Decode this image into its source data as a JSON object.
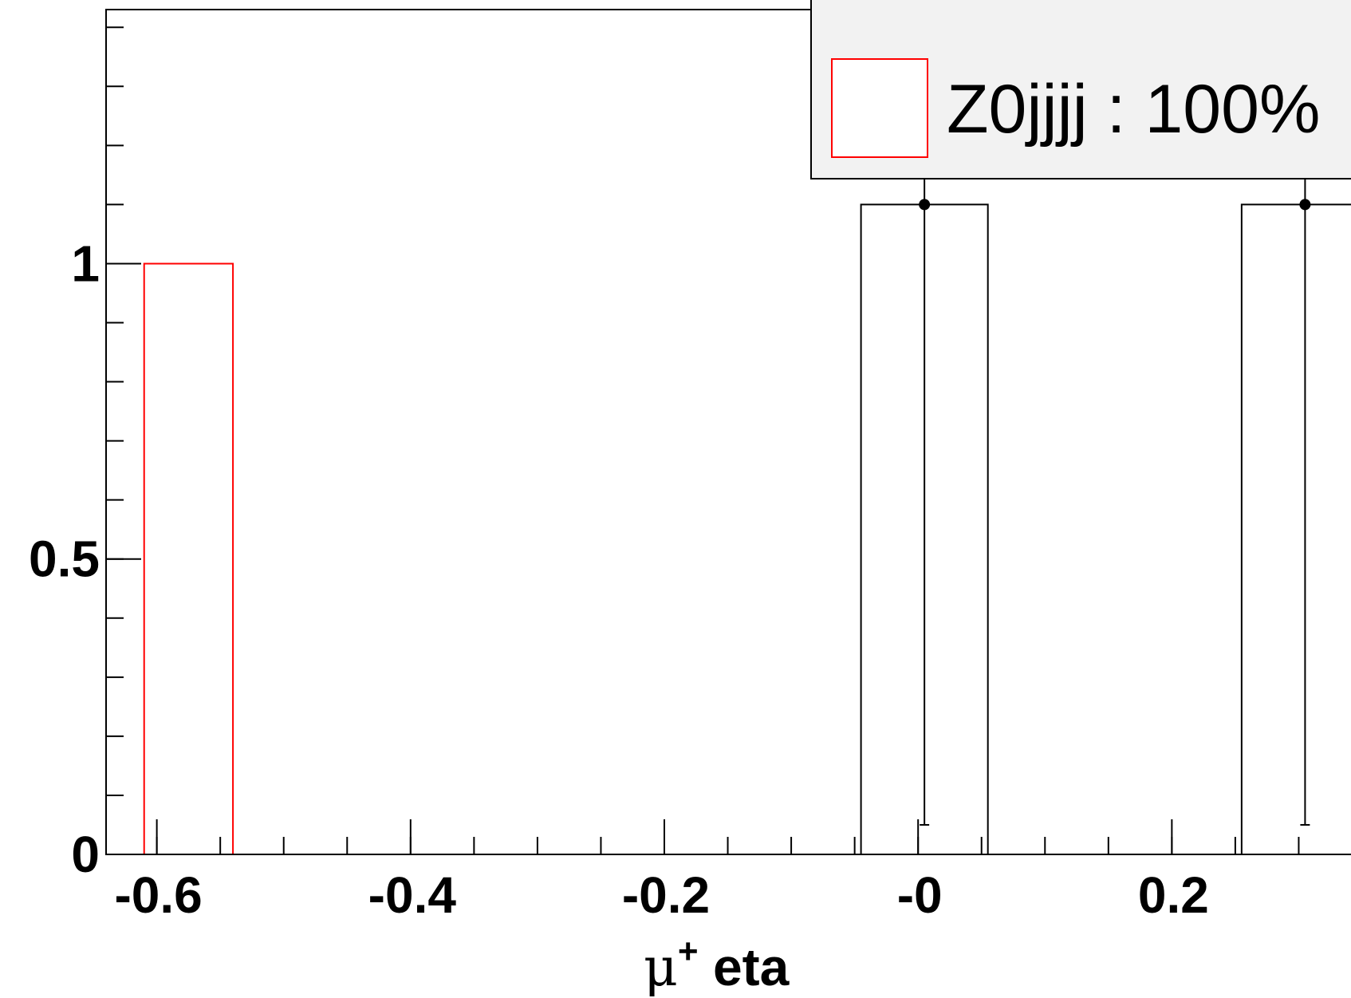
{
  "chart_data": {
    "type": "histogram",
    "xlabel_symbol": "μ",
    "xlabel_superscript": "+",
    "xlabel_rest": "eta",
    "xlim": [
      -0.64,
      0.35
    ],
    "ylim": [
      0,
      1.43
    ],
    "x_ticks": [
      {
        "value": -0.6,
        "label": "-0.6"
      },
      {
        "value": -0.4,
        "label": "-0.4"
      },
      {
        "value": -0.2,
        "label": "-0.2"
      },
      {
        "value": 0.0,
        "label": "-0"
      },
      {
        "value": 0.2,
        "label": "0.2"
      }
    ],
    "y_ticks": [
      {
        "value": 0,
        "label": "0"
      },
      {
        "value": 0.5,
        "label": "0.5"
      },
      {
        "value": 1,
        "label": "1"
      }
    ],
    "series": [
      {
        "name": "Z0jjjj : 100%",
        "style": "step",
        "color": "#ff0000",
        "bins": [
          {
            "x0": -0.61,
            "x1": -0.54,
            "y": 1.0
          }
        ]
      },
      {
        "style": "step-with-errors",
        "color": "#000000",
        "bins": [
          {
            "x0": -0.045,
            "x1": 0.055,
            "y": 1.1,
            "err_low": 0.05,
            "err_high": 1.25
          },
          {
            "x0": 0.255,
            "x1": 0.355,
            "y": 1.1,
            "err_low": 0.05,
            "err_high": 1.25
          }
        ]
      }
    ],
    "legend": {
      "position": "top-right",
      "entries": [
        {
          "label": "Z0jjjj : 100%",
          "color": "#ff0000"
        }
      ]
    },
    "grid": false
  }
}
